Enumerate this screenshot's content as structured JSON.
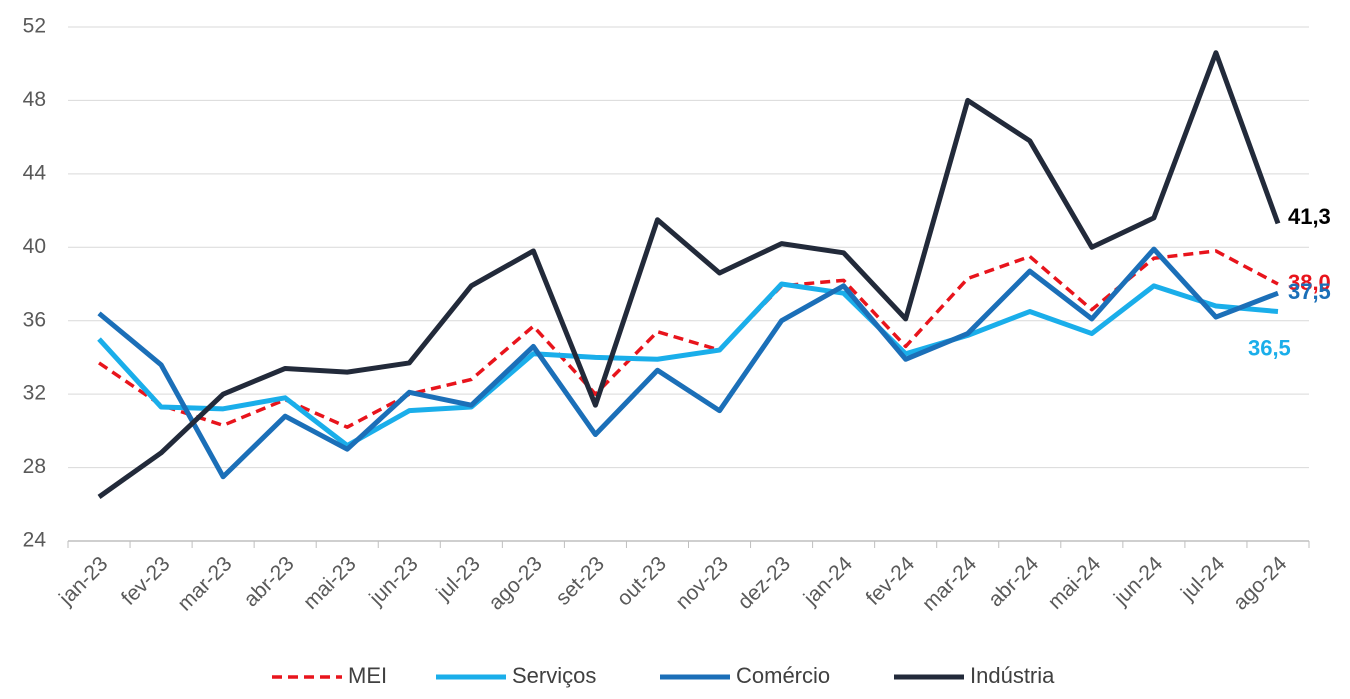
{
  "chart_data": {
    "type": "line",
    "categories": [
      "jan-23",
      "fev-23",
      "mar-23",
      "abr-23",
      "mai-23",
      "jun-23",
      "jul-23",
      "ago-23",
      "set-23",
      "out-23",
      "nov-23",
      "dez-23",
      "jan-24",
      "fev-24",
      "mar-24",
      "abr-24",
      "mai-24",
      "jun-24",
      "jul-24",
      "ago-24"
    ],
    "series": [
      {
        "name": "MEI",
        "color": "#e8141c",
        "dashed": true,
        "values": [
          33.7,
          31.4,
          30.3,
          31.7,
          30.2,
          32.0,
          32.8,
          35.7,
          32.0,
          35.4,
          34.4,
          37.9,
          38.2,
          34.6,
          38.3,
          39.5,
          36.6,
          39.4,
          39.8,
          38.0
        ],
        "value_labels": [
          null,
          null,
          null,
          null,
          null,
          null,
          null,
          null,
          null,
          null,
          null,
          null,
          null,
          null,
          null,
          null,
          null,
          null,
          null,
          "38,0"
        ]
      },
      {
        "name": "Serviços",
        "color": "#1aaeea",
        "values": [
          35.0,
          31.3,
          31.2,
          31.8,
          29.2,
          31.1,
          31.3,
          34.2,
          34.0,
          33.9,
          34.4,
          38.0,
          37.5,
          34.2,
          35.2,
          36.5,
          35.3,
          37.9,
          36.8,
          36.5
        ],
        "value_labels": [
          null,
          null,
          null,
          null,
          null,
          null,
          null,
          null,
          null,
          null,
          null,
          null,
          null,
          null,
          null,
          null,
          null,
          null,
          null,
          "36,5"
        ]
      },
      {
        "name": "Comércio",
        "color": "#1b6fb8",
        "values": [
          36.4,
          33.6,
          27.5,
          30.8,
          29.0,
          32.1,
          31.4,
          34.6,
          29.8,
          33.3,
          31.1,
          36.0,
          37.9,
          33.9,
          35.3,
          38.7,
          36.1,
          39.9,
          36.2,
          37.5
        ],
        "value_labels": [
          null,
          null,
          null,
          null,
          null,
          null,
          null,
          null,
          null,
          null,
          null,
          null,
          null,
          null,
          null,
          null,
          null,
          null,
          null,
          "37,5"
        ]
      },
      {
        "name": "Indústria",
        "color": "#222a3a",
        "values": [
          26.4,
          28.8,
          32.0,
          33.4,
          33.2,
          33.7,
          37.9,
          39.8,
          31.4,
          41.5,
          38.6,
          40.2,
          39.7,
          36.1,
          48.0,
          45.8,
          40.0,
          41.6,
          50.6,
          41.3
        ],
        "value_labels": [
          null,
          null,
          null,
          null,
          null,
          null,
          null,
          null,
          null,
          null,
          null,
          null,
          null,
          null,
          null,
          null,
          null,
          null,
          null,
          "41,3"
        ]
      }
    ],
    "ylim": [
      24,
      52
    ],
    "yticks": [
      24,
      28,
      32,
      36,
      40,
      44,
      48,
      52
    ],
    "grid": true,
    "legend": "bottom"
  }
}
